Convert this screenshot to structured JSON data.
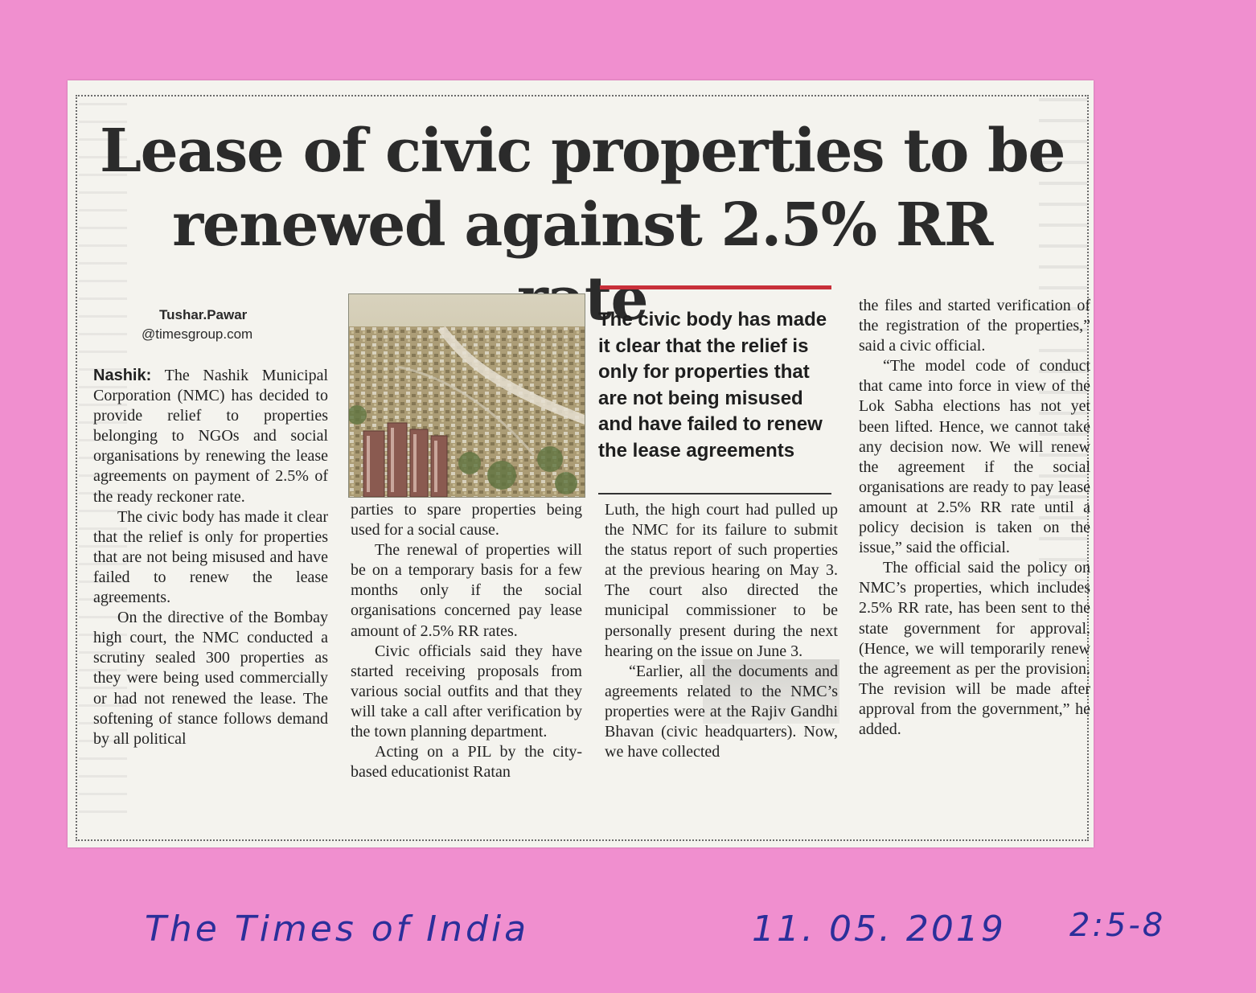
{
  "article": {
    "headline_line1": "Lease of civic properties to be",
    "headline_line2": "renewed against 2.5% RR rate",
    "byline_author": "Tushar.Pawar",
    "byline_email": "@timesgroup.com",
    "dateline": "Nashik:",
    "col1_p1": "The Nashik Municipal Corporation (NMC) has decided to provide relief to properties belonging to NGOs and social organisations by renewing the lease agreements on payment of 2.5% of the ready reckoner rate.",
    "col1_p2": "The civic body has made it clear that the relief is only for properties that are not being misused and have failed to renew the lease agreements.",
    "col1_p3": "On the directive of the Bombay high court, the NMC conducted a scrutiny sealed 300 properties as they were being used commercially or had not renewed the lease. The softening of stance follows demand by all political",
    "col2_p1": "parties to spare properties being used for a social cause.",
    "col2_p2": "The renewal of properties will be on a temporary basis for a few months only if the social organisations concerned pay lease amount of 2.5% RR rates.",
    "col2_p3": "Civic officials said they have started receiving proposals from various social outfits and that they will take a call after verification by the town planning department.",
    "col2_p4": "Acting on a PIL by the city-based educationist Ratan",
    "pullquote": "The civic body has made it clear that the relief is only for properties that are not being misused and have failed to renew the lease agreements",
    "col3_p1": "Luth, the high court had pulled up the NMC for its failure to submit the status report of such properties at the previous hearing on May 3. The court also directed the municipal commissioner to be personally present during the next hearing on the issue on June 3.",
    "col3_p2": "“Earlier, all the documents and agreements related to the NMC’s properties were at the Rajiv Gandhi Bhavan (civic headquarters). Now, we have collected",
    "col4_p1": "the files and started verification of the registration of the properties,” said a civic official.",
    "col4_p2": "“The model code of conduct that came into force in view of the Lok Sabha elections has not yet been lifted. Hence, we cannot take any decision now. We will renew the agreement if the social organisations are ready to pay lease amount at 2.5% RR rate until a policy decision is taken on the issue,” said the official.",
    "col4_p3": "The official said the policy on NMC’s properties, which includes 2.5% RR rate, has been sent to the state government for approval. (Hence, we will temporarily renew the agreement as per the provision. The revision will be made after approval from the government,” he added."
  },
  "annotation": {
    "newspaper": "The Times of India",
    "date": "11. 05. 2019",
    "page_ref": "2:5-8"
  },
  "colors": {
    "paper_background": "#f08fcf",
    "clipping_background": "#f4f3ee",
    "accent_rule": "#c8303a",
    "handwriting_ink": "#2b2f9a"
  }
}
